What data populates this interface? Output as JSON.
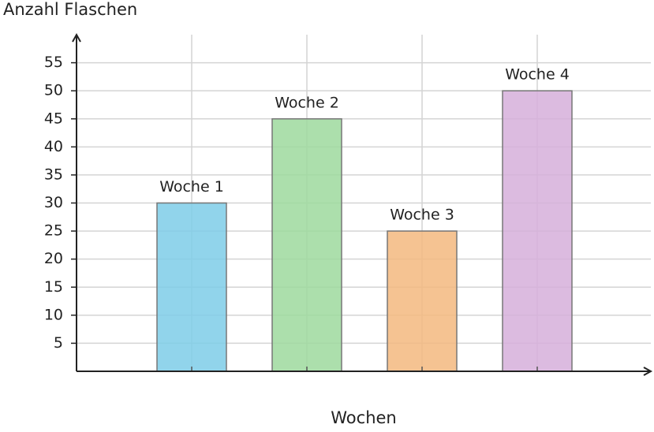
{
  "chart_data": {
    "type": "bar",
    "y_label": "Anzahl Flaschen",
    "x_label": "Wochen",
    "categories": [
      "Woche 1",
      "Woche 2",
      "Woche 3",
      "Woche 4"
    ],
    "values": [
      30,
      45,
      25,
      50
    ],
    "colors": [
      "#7ecde8",
      "#9ed99e",
      "#f3b97f",
      "#d6afdb"
    ],
    "ylim": [
      0,
      60
    ],
    "yticks": [
      5,
      10,
      15,
      20,
      25,
      30,
      35,
      40,
      45,
      50,
      55
    ],
    "grid": true
  }
}
